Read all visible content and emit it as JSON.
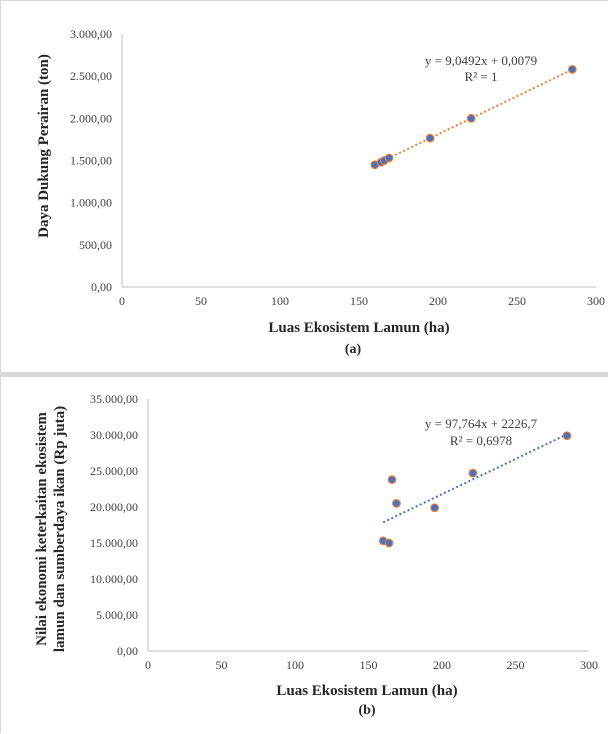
{
  "chart_data": [
    {
      "type": "scatter",
      "caption": "(a)",
      "xlabel": "Luas Ekosistem Lamun (ha)",
      "ylabel": "Daya Dukung Perairan (ton)",
      "xlim": [
        0,
        300
      ],
      "ylim": [
        0,
        3000
      ],
      "x_ticks": [
        "0",
        "50",
        "100",
        "150",
        "200",
        "250",
        "300"
      ],
      "y_ticks": [
        "0,00",
        "500,00",
        "1.000,00",
        "1.500,00",
        "2.000,00",
        "2.500,00",
        "3.000,00"
      ],
      "grid": false,
      "points": [
        {
          "x": 160,
          "y": 1450
        },
        {
          "x": 164,
          "y": 1480
        },
        {
          "x": 166,
          "y": 1500
        },
        {
          "x": 169,
          "y": 1530
        },
        {
          "x": 195,
          "y": 1765
        },
        {
          "x": 221,
          "y": 2000
        },
        {
          "x": 285,
          "y": 2580
        }
      ],
      "trendline": {
        "slope": 9.0492,
        "intercept": 0.0079,
        "x_from": 160,
        "x_to": 285,
        "color": "#ed7d31"
      },
      "equation": "y = 9,0492x + 0,0079",
      "r2": "R² = 1",
      "colors": {
        "marker_fill": "#4472c4",
        "marker_edge": "#ed7d31"
      }
    },
    {
      "type": "scatter",
      "caption": "(b)",
      "xlabel": "Luas Ekosistem Lamun (ha)",
      "ylabel_line1": "Nilai ekonomi keterkaitan ekosistem",
      "ylabel_line2": "lamun dan sumberdaya ikan (Rp juta)",
      "xlim": [
        0,
        300
      ],
      "ylim": [
        0,
        35000
      ],
      "x_ticks": [
        "0",
        "50",
        "100",
        "150",
        "200",
        "250",
        "300"
      ],
      "y_ticks": [
        "0,00",
        "5.000,00",
        "10.000,00",
        "15.000,00",
        "20.000,00",
        "25.000,00",
        "30.000,00",
        "35.000,00"
      ],
      "grid": false,
      "points": [
        {
          "x": 160,
          "y": 15300
        },
        {
          "x": 164,
          "y": 15000
        },
        {
          "x": 166,
          "y": 23800
        },
        {
          "x": 169,
          "y": 20500
        },
        {
          "x": 195,
          "y": 19900
        },
        {
          "x": 221,
          "y": 24700
        },
        {
          "x": 285,
          "y": 29900
        }
      ],
      "trendline": {
        "slope": 97.764,
        "intercept": 2226.7,
        "x_from": 160,
        "x_to": 285,
        "color": "#4472c4"
      },
      "equation": "y = 97,764x + 2226,7",
      "r2": "R² = 0,6978",
      "colors": {
        "marker_fill": "#4472c4",
        "marker_edge": "#ed7d31"
      }
    }
  ]
}
